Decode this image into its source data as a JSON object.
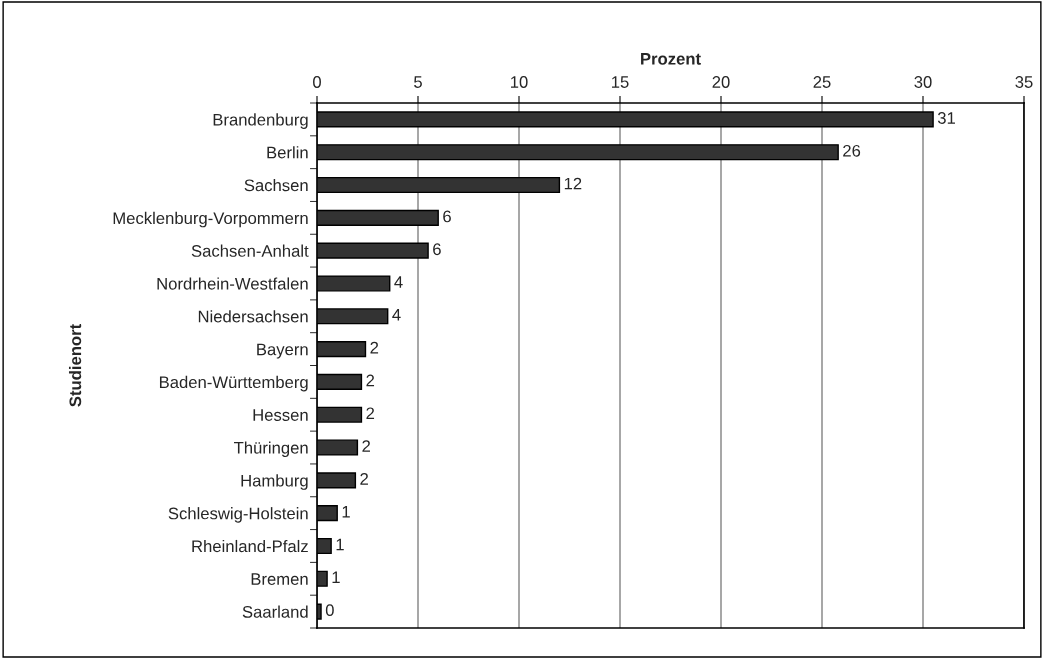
{
  "chart_data": {
    "type": "bar",
    "orientation": "horizontal",
    "xlabel": "Prozent",
    "ylabel": "Studienort",
    "categories": [
      "Brandenburg",
      "Berlin",
      "Sachsen",
      "Mecklenburg-Vorpommern",
      "Sachsen-Anhalt",
      "Nordrhein-Westfalen",
      "Niedersachsen",
      "Bayern",
      "Baden-Württemberg",
      "Hessen",
      "Thüringen",
      "Hamburg",
      "Schleswig-Holstein",
      "Rheinland-Pfalz",
      "Bremen",
      "Saarland"
    ],
    "values": [
      30.5,
      25.8,
      12.0,
      6.0,
      5.5,
      3.6,
      3.5,
      2.4,
      2.2,
      2.2,
      2.0,
      1.9,
      1.0,
      0.7,
      0.5,
      0.2
    ],
    "value_labels": [
      "31",
      "26",
      "12",
      "6",
      "6",
      "4",
      "4",
      "2",
      "2",
      "2",
      "2",
      "2",
      "1",
      "1",
      "1",
      "0"
    ],
    "color": "#333333",
    "xlim": [
      0,
      35
    ],
    "xticks": [
      0,
      5,
      10,
      15,
      20,
      25,
      30,
      35
    ],
    "grid": "x"
  }
}
